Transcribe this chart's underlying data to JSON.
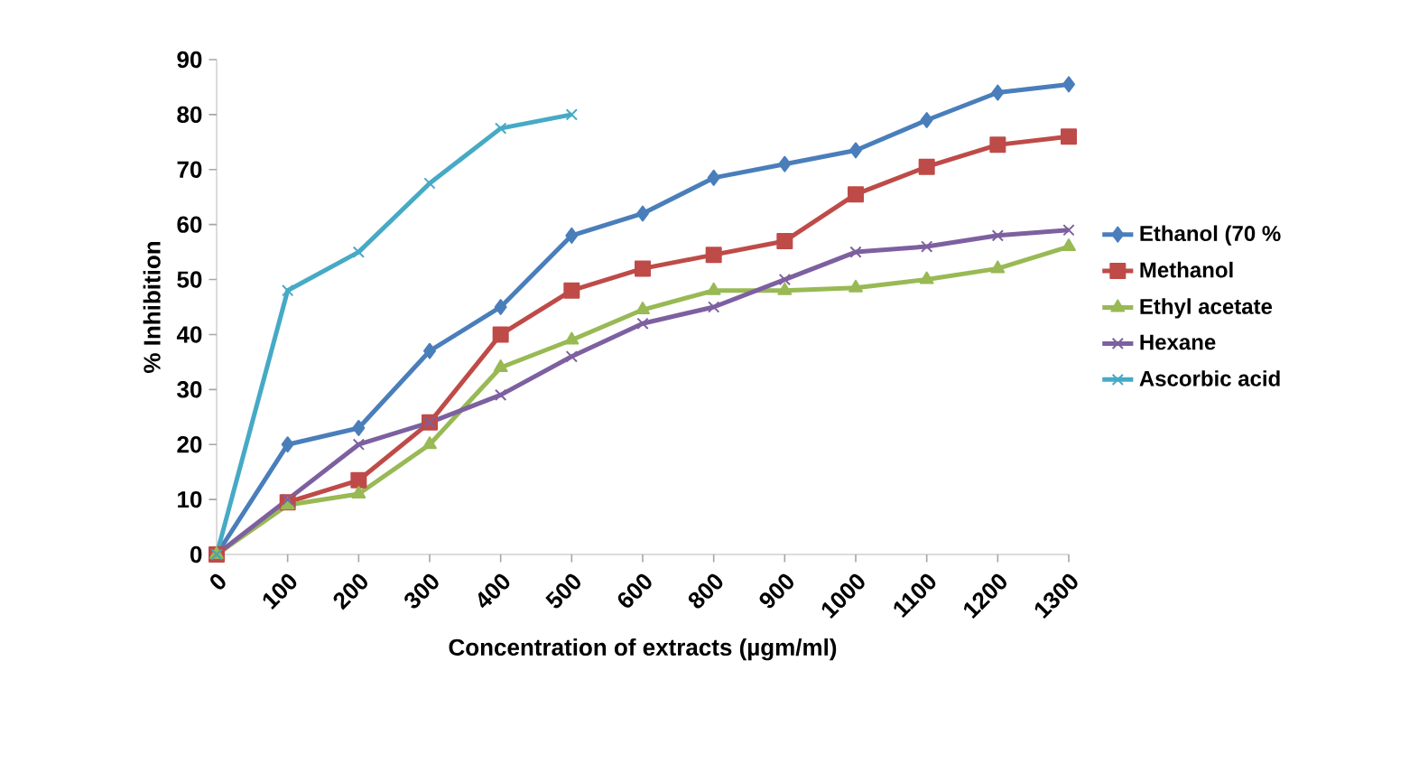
{
  "chart_data": {
    "type": "line",
    "xlabel": "Concentration  of extracts  (µgm/ml)",
    "ylabel": "% Inhibition",
    "categories": [
      "0",
      "100",
      "200",
      "300",
      "400",
      "500",
      "600",
      "800",
      "900",
      "1000",
      "1100",
      "1200",
      "1300"
    ],
    "ylim": [
      0,
      90
    ],
    "yticks": [
      0,
      10,
      20,
      30,
      40,
      50,
      60,
      70,
      80,
      90
    ],
    "grid": false,
    "legend": "right",
    "series": [
      {
        "name": "Ethanol (70 %",
        "color": "#4a7ebb",
        "marker": "diamond",
        "values": [
          0,
          20,
          23,
          37,
          45,
          58,
          62,
          68.5,
          71,
          73.5,
          79,
          84,
          85.5
        ]
      },
      {
        "name": "Methanol",
        "color": "#be4b48",
        "marker": "square",
        "values": [
          0,
          9.5,
          13.5,
          24,
          40,
          48,
          52,
          54.5,
          57,
          65.5,
          70.5,
          74.5,
          76
        ]
      },
      {
        "name": "Ethyl acetate",
        "color": "#98b954",
        "marker": "triangle",
        "values": [
          0,
          9,
          11,
          20,
          34,
          39,
          44.5,
          48,
          48,
          48.5,
          50,
          52,
          56
        ]
      },
      {
        "name": "Hexane",
        "color": "#7d60a0",
        "marker": "cross",
        "values": [
          0,
          10,
          20,
          24,
          29,
          36,
          42,
          45,
          50,
          55,
          56,
          58,
          59
        ]
      },
      {
        "name": "Ascorbic acid",
        "color": "#46aac5",
        "marker": "cross",
        "values": [
          0,
          48,
          55,
          67.5,
          77.5,
          80,
          null,
          null,
          null,
          null,
          null,
          null,
          null
        ]
      }
    ]
  }
}
